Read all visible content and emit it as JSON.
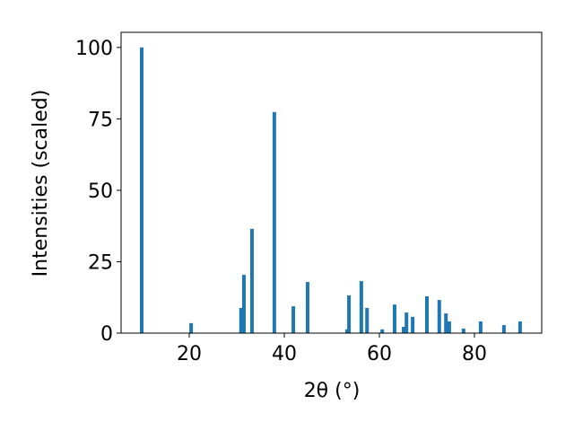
{
  "chart_data": {
    "type": "bar",
    "x_label": "2θ (°)",
    "y_label": "Intensities (scaled)",
    "x": [
      10.0,
      20.4,
      30.9,
      31.5,
      33.2,
      37.9,
      41.9,
      44.9,
      53.2,
      53.6,
      56.2,
      57.4,
      60.6,
      63.2,
      65.1,
      65.7,
      67.0,
      70.0,
      72.6,
      74.0,
      74.7,
      77.7,
      81.3,
      86.2,
      89.6
    ],
    "values": [
      100,
      3.5,
      8.8,
      20.4,
      36.5,
      77.4,
      9.4,
      17.9,
      1.3,
      13.2,
      18.2,
      8.8,
      1.3,
      10,
      2.2,
      7.2,
      5.7,
      12.9,
      11.6,
      6.9,
      4.1,
      1.6,
      4.1,
      2.8,
      4.1
    ],
    "color": "#1f77b4",
    "xlim": [
      5.66,
      94.15
    ],
    "ylim": [
      0,
      105.3
    ],
    "xticks": [
      20,
      40,
      60,
      80
    ],
    "yticks": [
      0,
      25,
      50,
      75,
      100
    ]
  }
}
